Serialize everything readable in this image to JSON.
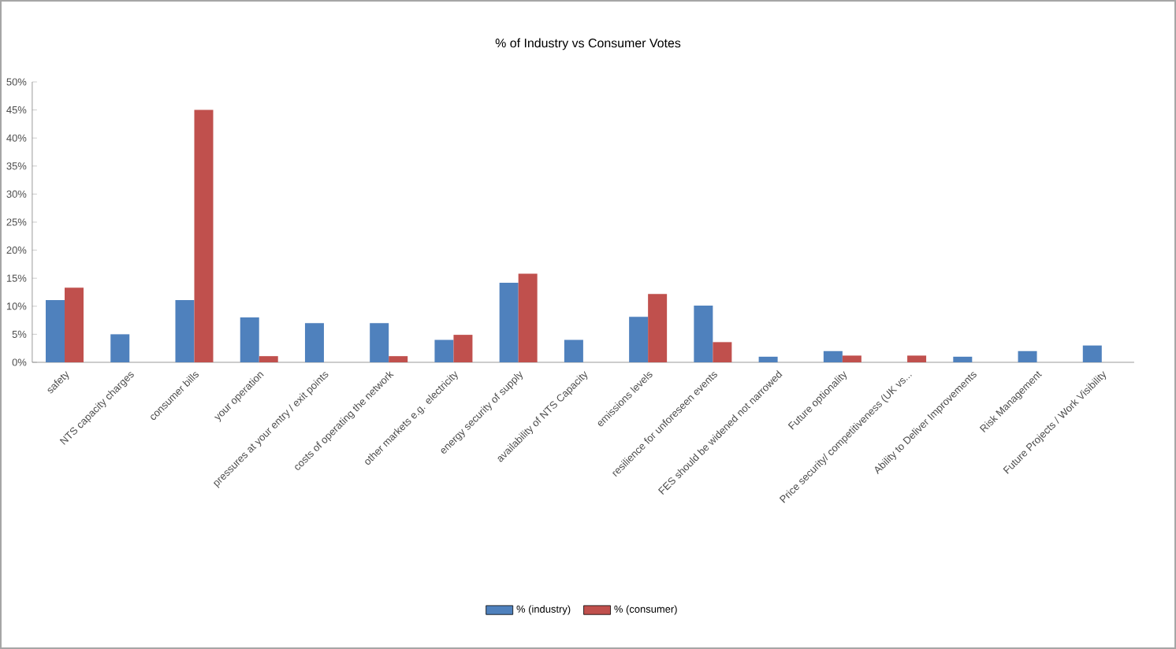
{
  "chart_data": {
    "type": "bar",
    "title": "% of Industry vs Consumer Votes",
    "categories": [
      "safety",
      "NTS capacity charges",
      "consumer bills",
      "your operation",
      "pressures at your entry / exit points",
      "costs of operating the network",
      "other markets e.g. electricity",
      "energy security of supply",
      "availability of NTS Capacity",
      "emissions levels",
      "resilience for unforeseen events",
      "FES should be widened not narrowed",
      "Future optionality",
      "Price security/ competitiveness (UK vs...",
      "Ability to Deliver Improvements",
      "Risk Management",
      "Future Projects / Work Visibility"
    ],
    "series": [
      {
        "name": "% (industry)",
        "color": "#4f81bd",
        "values": [
          11.1,
          5,
          11.1,
          8,
          7,
          7,
          4,
          14.2,
          4,
          8.1,
          10.1,
          1,
          2,
          0,
          1,
          2,
          3
        ]
      },
      {
        "name": "% (consumer)",
        "color": "#c0504d",
        "values": [
          13.3,
          0,
          45,
          1.1,
          0,
          1.1,
          4.9,
          15.8,
          0,
          12.2,
          3.6,
          0,
          1.2,
          1.2,
          0,
          0,
          0
        ]
      }
    ],
    "ylim": [
      0,
      50
    ],
    "yticks": [
      {
        "value": 0,
        "label": "0%"
      },
      {
        "value": 5,
        "label": "5%"
      },
      {
        "value": 10,
        "label": "10%"
      },
      {
        "value": 15,
        "label": "15%"
      },
      {
        "value": 20,
        "label": "20%"
      },
      {
        "value": 25,
        "label": "25%"
      },
      {
        "value": 30,
        "label": "30%"
      },
      {
        "value": 35,
        "label": "35%"
      },
      {
        "value": 40,
        "label": "40%"
      },
      {
        "value": 45,
        "label": "45%"
      },
      {
        "value": 50,
        "label": "50%"
      }
    ],
    "legend": "bottom"
  }
}
